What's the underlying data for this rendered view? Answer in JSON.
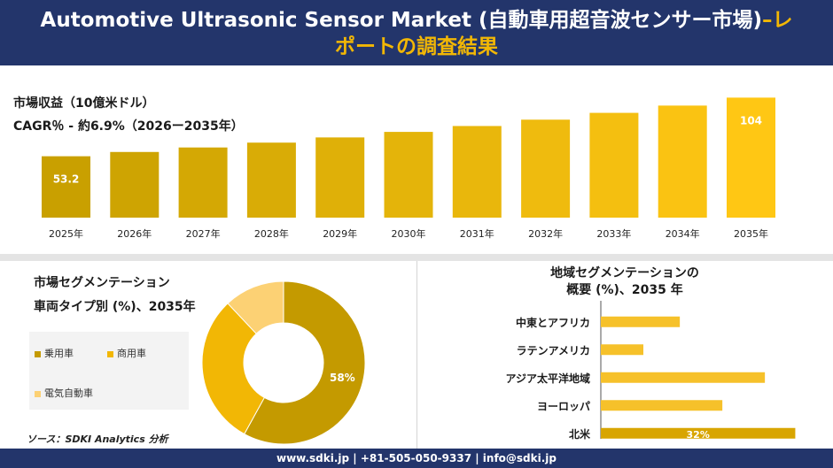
{
  "header": {
    "title_main": "Automotive Ultrasonic Sensor Market (自動車用超音波センサー市場)",
    "title_accent": "–レ",
    "title_line2": "ポートの調査結果"
  },
  "revenue": {
    "label": "市場収益（10億米ドル）",
    "cagr": "CAGR％ - 約6.9%（2026ー2035年）"
  },
  "segmentation": {
    "title": "市場セグメンテーション",
    "subtitle": "車両タイプ別 (%)、2035年"
  },
  "regional": {
    "title_line1": "地域セグメンテーションの",
    "title_line2": "概要 (%)、2035 年"
  },
  "source": "ソース：SDKI Analytics 分析",
  "footer": "www.sdki.jp | +81-505-050-9337 | info@sdki.jp",
  "colors": {
    "navy": "#23356b",
    "gold_dark": "#c49a00",
    "gold": "#f2b705",
    "gold_light": "#fcd174",
    "bar_region": "#f6c12a"
  },
  "chart_data": [
    {
      "type": "bar",
      "categories": [
        "2025年",
        "2026年",
        "2027年",
        "2028年",
        "2029年",
        "2030年",
        "2031年",
        "2032年",
        "2033年",
        "2034年",
        "2035年"
      ],
      "values": [
        53.2,
        56.9,
        60.8,
        65.0,
        69.5,
        74.3,
        79.4,
        84.9,
        90.8,
        97.1,
        104
      ],
      "data_labels": [
        "53.2",
        "",
        "",
        "",
        "",
        "",
        "",
        "",
        "",
        "",
        "104"
      ],
      "title": "",
      "xlabel": "",
      "ylabel": "",
      "ylim": [
        0,
        115
      ]
    },
    {
      "type": "pie",
      "donut": true,
      "labels": [
        "乗用車",
        "商用車",
        "電気自動車"
      ],
      "values": [
        58,
        30,
        12
      ],
      "data_labels": [
        "58%",
        "",
        ""
      ],
      "colors": [
        "#c49a00",
        "#f2b705",
        "#fcd174"
      ],
      "legend": "left"
    },
    {
      "type": "bar",
      "orientation": "horizontal",
      "categories": [
        "中東とアフリカ",
        "ラテンアメリカ",
        "アジア太平洋地域",
        "ヨーロッパ",
        "北米"
      ],
      "values": [
        13,
        7,
        27,
        20,
        32
      ],
      "data_labels": [
        "",
        "",
        "",
        "",
        "32%"
      ],
      "xlim": [
        0,
        35
      ]
    }
  ]
}
